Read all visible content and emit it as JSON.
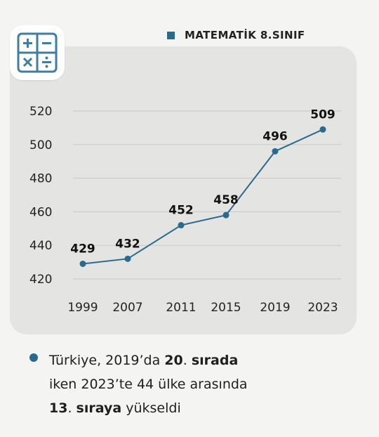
{
  "colors": {
    "accent": "#2a6a8c",
    "icon_border": "#3f7ea0"
  },
  "icon": "calculator-icon",
  "legend": {
    "label": "MATEMATİK 8.SINIF"
  },
  "chart_data": {
    "type": "line",
    "title": "",
    "xlabel": "",
    "ylabel": "",
    "categories": [
      "1999",
      "2007",
      "2011",
      "2015",
      "2019",
      "2023"
    ],
    "series": [
      {
        "name": "MATEMATİK 8.SINIF",
        "values": [
          429,
          432,
          452,
          458,
          496,
          509
        ]
      }
    ],
    "ylim": [
      420,
      520
    ],
    "yticks": [
      420,
      440,
      460,
      480,
      500,
      520
    ],
    "grid": true,
    "legend_position": "top-right"
  },
  "note": {
    "line1_a": "Türkiye, 2019’da ",
    "line1_b": "20",
    "line1_c": ". ",
    "line1_d": "sırada",
    "line2": "iken 2023’te 44 ülke arasında",
    "line3_a": "13",
    "line3_b": ". ",
    "line3_c": "sıraya",
    "line3_d": " yükseldi"
  }
}
